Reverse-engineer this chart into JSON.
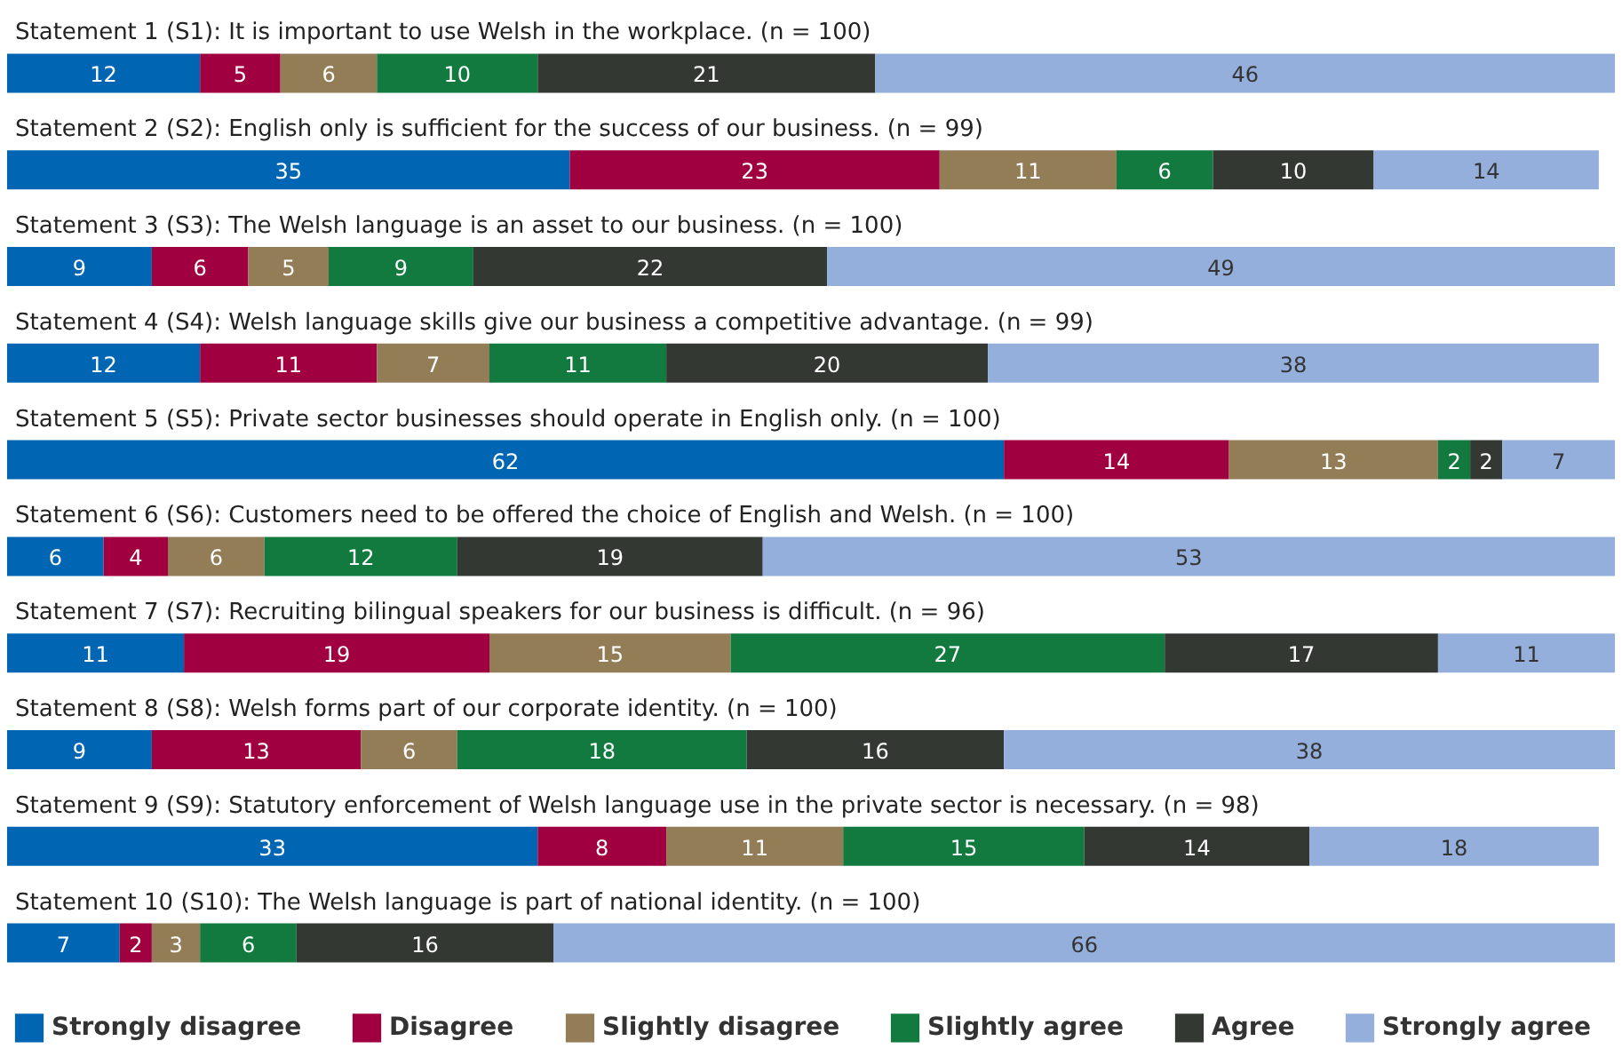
{
  "chart_data": {
    "type": "bar",
    "orientation": "horizontal",
    "stacked": true,
    "data_labels": true,
    "legend": "bottom",
    "tick_labels": "y",
    "xlim": [
      0,
      100
    ],
    "categories": [
      "Statement 1 (S1): It is important to use Welsh in the workplace. (n = 100)",
      "Statement 2 (S2): English only is sufficient for the success of our business. (n = 99)",
      "Statement 3 (S3): The Welsh language is an asset to our business. (n = 100)",
      "Statement 4 (S4): Welsh language skills give our business a competitive advantage. (n = 99)",
      "Statement 5 (S5): Private sector businesses should operate in English only. (n = 100)",
      "Statement 6 (S6): Customers need to be offered the choice of English and Welsh. (n = 100)",
      "Statement 7 (S7): Recruiting bilingual speakers for our business is difficult. (n = 96)",
      "Statement 8 (S8): Welsh forms part of our corporate identity. (n = 100)",
      "Statement 9 (S9): Statutory enforcement of Welsh language use in the private sector is necessary. (n = 98)",
      "Statement 10 (S10): The Welsh language is part of national identity. (n = 100)"
    ],
    "series": [
      {
        "name": "Strongly disagree",
        "color": "#0066b3",
        "values": [
          12,
          35,
          9,
          12,
          62,
          6,
          11,
          9,
          33,
          7
        ]
      },
      {
        "name": "Disagree",
        "color": "#a0003f",
        "values": [
          5,
          23,
          6,
          11,
          14,
          4,
          19,
          13,
          8,
          2
        ]
      },
      {
        "name": "Slightly disagree",
        "color": "#927d57",
        "values": [
          6,
          11,
          5,
          7,
          13,
          6,
          15,
          6,
          11,
          3
        ]
      },
      {
        "name": "Slightly agree",
        "color": "#127a3e",
        "values": [
          10,
          6,
          9,
          11,
          2,
          12,
          27,
          18,
          15,
          6
        ]
      },
      {
        "name": "Agree",
        "color": "#333833",
        "values": [
          21,
          10,
          22,
          20,
          2,
          19,
          17,
          16,
          14,
          16
        ]
      },
      {
        "name": "Strongly agree",
        "color": "#94afdb",
        "values": [
          46,
          14,
          49,
          38,
          7,
          53,
          11,
          38,
          18,
          66
        ]
      }
    ]
  }
}
